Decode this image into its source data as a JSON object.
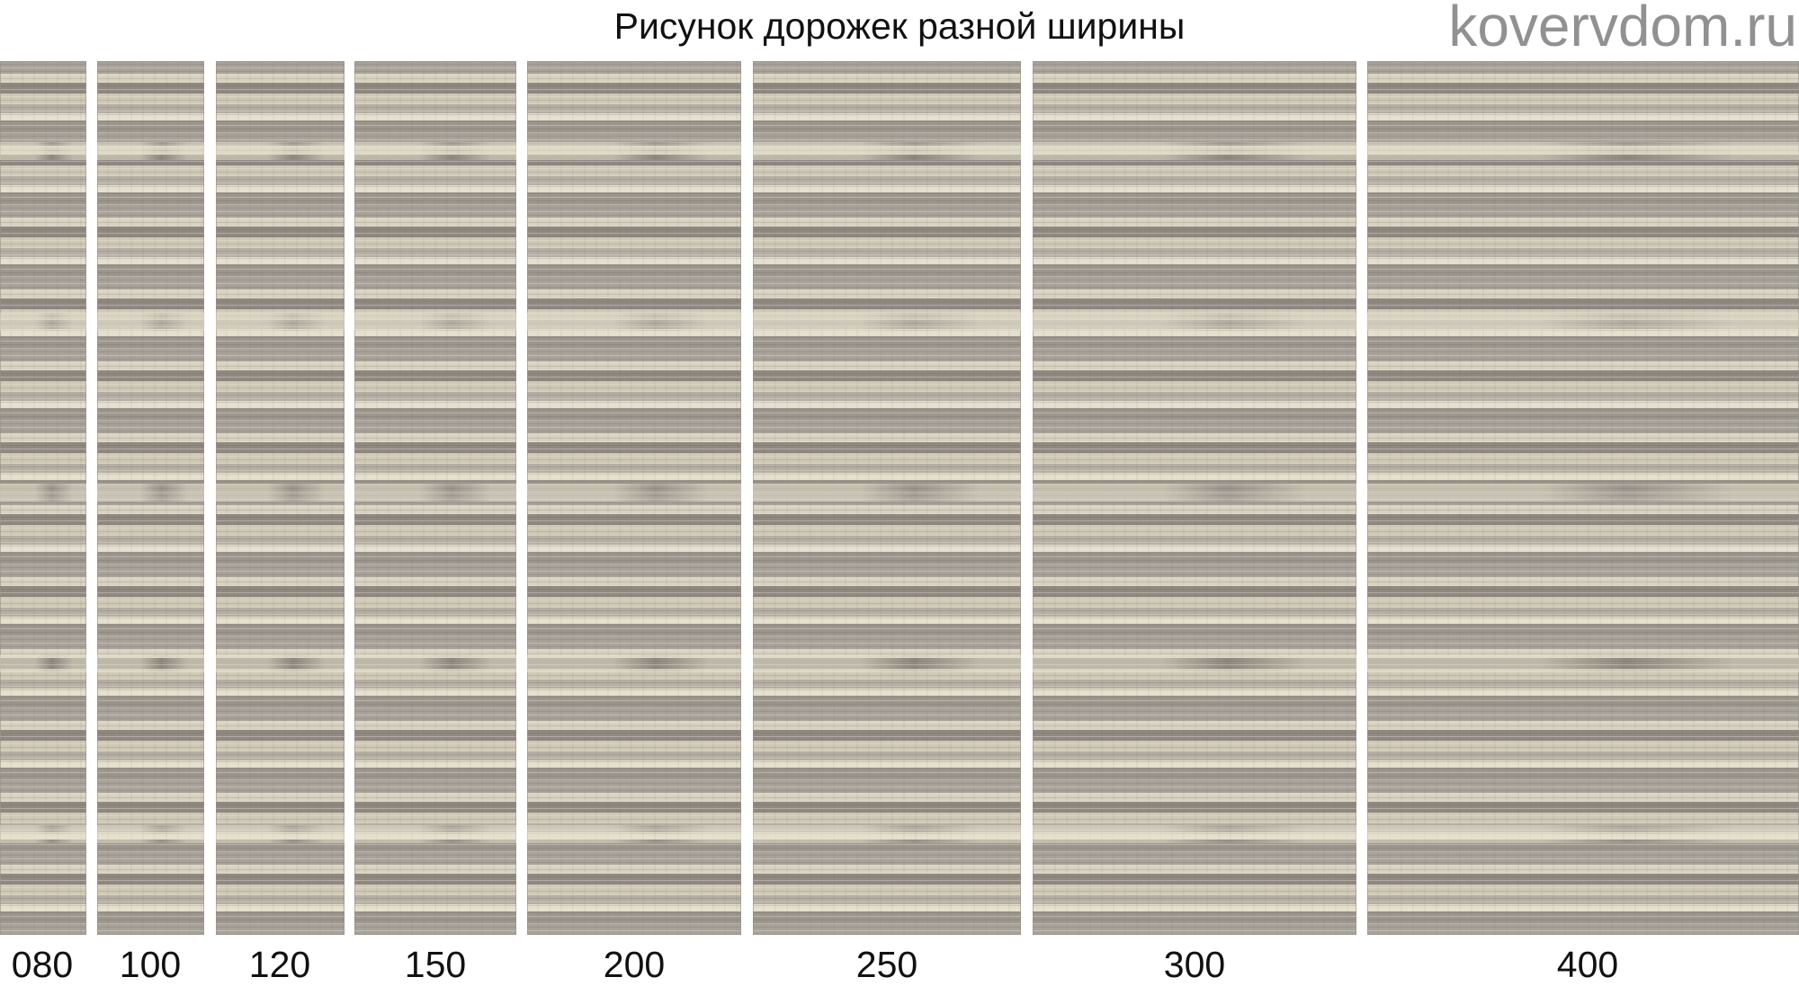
{
  "title": "Рисунок дорожек разной ширины",
  "runners": [
    {
      "width_label": "080"
    },
    {
      "width_label": "100"
    },
    {
      "width_label": "120"
    },
    {
      "width_label": "150"
    },
    {
      "width_label": "200"
    },
    {
      "width_label": "250"
    },
    {
      "width_label": "300"
    },
    {
      "width_label": "400"
    }
  ],
  "watermark": "kovervdom.ru"
}
